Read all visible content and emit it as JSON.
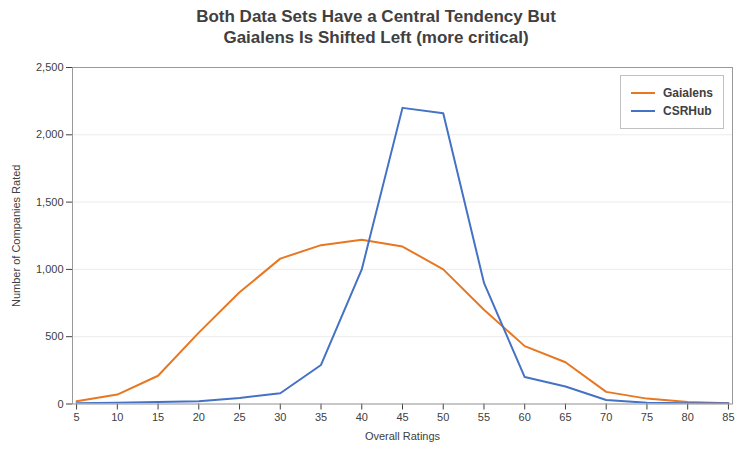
{
  "chart_data": {
    "type": "line",
    "title": "Both Data Sets Have a Central Tendency But\nGaialens Is Shifted Left (more critical)",
    "x_label": "Overall Ratings",
    "y_label": "Number of Companies Rated",
    "x": [
      5,
      10,
      15,
      20,
      25,
      30,
      35,
      40,
      45,
      50,
      55,
      60,
      65,
      70,
      75,
      80,
      85
    ],
    "series": [
      {
        "name": "Gaialens",
        "color": "#E87722",
        "values": [
          20,
          70,
          210,
          530,
          830,
          1080,
          1180,
          1220,
          1170,
          1000,
          700,
          430,
          310,
          90,
          40,
          15,
          5
        ]
      },
      {
        "name": "CSRHub",
        "color": "#4472C4",
        "values": [
          5,
          10,
          15,
          20,
          45,
          80,
          290,
          1000,
          2200,
          2160,
          900,
          200,
          130,
          30,
          10,
          5,
          5
        ]
      }
    ],
    "xlim": [
      4.5,
      85.5
    ],
    "xticks": [
      5,
      10,
      15,
      20,
      25,
      30,
      35,
      40,
      45,
      50,
      55,
      60,
      65,
      70,
      75,
      80,
      85
    ],
    "ylim": [
      0,
      2500
    ],
    "yticks": [
      0,
      500,
      {
        "value": 1000,
        "label": "1,000"
      },
      {
        "value": 1500,
        "label": "1,500"
      },
      {
        "value": 2000,
        "label": "2,000"
      },
      {
        "value": 2500,
        "label": "2,500"
      }
    ],
    "grid": "y",
    "legend": "upper right"
  }
}
